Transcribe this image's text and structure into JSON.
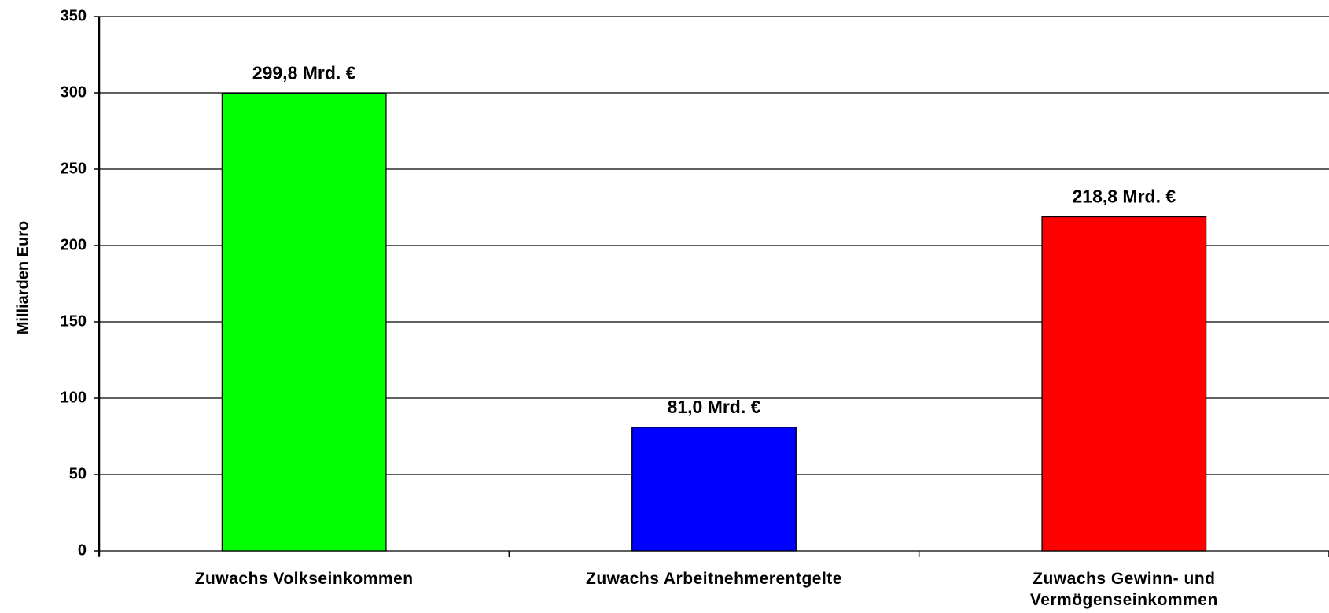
{
  "chart_data": {
    "type": "bar",
    "y_label": "Milliarden Euro",
    "categories": [
      "Zuwachs Volkseinkommen",
      "Zuwachs Arbeitnehmerentgelte",
      "Zuwachs Gewinn- und Vermögenseinkommen"
    ],
    "values": [
      299.8,
      81.0,
      218.8
    ],
    "value_labels": [
      "299,8 Mrd. €",
      "81,0 Mrd. €",
      "218,8 Mrd. €"
    ],
    "colors": [
      "#00ff00",
      "#0000ff",
      "#ff0000"
    ],
    "ylim": [
      0,
      350
    ],
    "yticks": [
      0,
      50,
      100,
      150,
      200,
      250,
      300,
      350
    ],
    "grid": true
  }
}
